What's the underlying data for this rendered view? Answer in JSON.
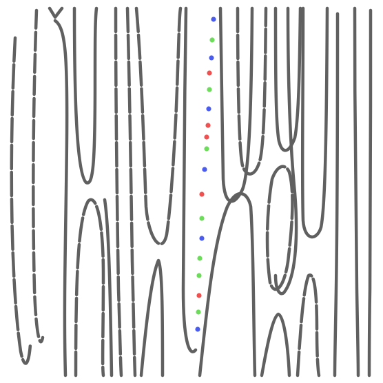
{
  "game": {
    "line_color": "#606060",
    "background": "#ffffff",
    "dots": [
      {
        "color": "blue"
      },
      {
        "color": "green"
      },
      {
        "color": "blue"
      },
      {
        "color": "red"
      },
      {
        "color": "green"
      },
      {
        "color": "blue"
      },
      {
        "color": "red"
      },
      {
        "color": "red"
      },
      {
        "color": "green"
      },
      {
        "color": "blue"
      },
      {
        "color": "red"
      },
      {
        "color": "green"
      },
      {
        "color": "blue"
      },
      {
        "color": "green"
      },
      {
        "color": "green"
      },
      {
        "color": "red"
      },
      {
        "color": "green"
      },
      {
        "color": "blue"
      }
    ],
    "dot_colors": {
      "blue": "#4a5cf0",
      "green": "#6ddc5a",
      "red": "#f05050"
    }
  }
}
